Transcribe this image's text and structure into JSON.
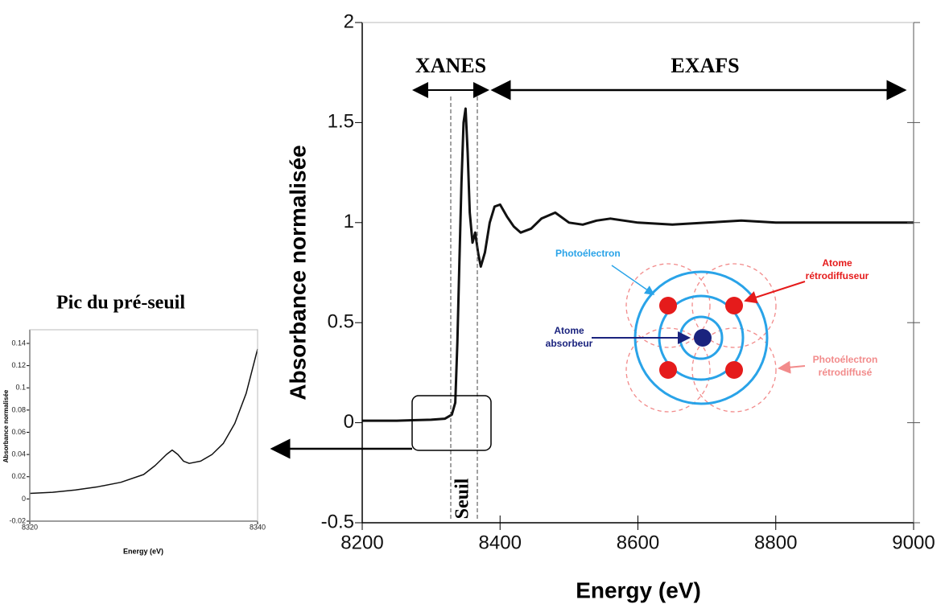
{
  "chart_data": [
    {
      "type": "line",
      "x_label": "Energy (eV)",
      "y_label": "Absorbance normalisée",
      "x": [
        8200,
        8250,
        8300,
        8320,
        8330,
        8335,
        8338,
        8341,
        8344,
        8347,
        8350,
        8353,
        8356,
        8360,
        8364,
        8368,
        8372,
        8378,
        8385,
        8392,
        8400,
        8410,
        8420,
        8430,
        8445,
        8460,
        8480,
        8500,
        8520,
        8540,
        8560,
        8600,
        8650,
        8700,
        8750,
        8800,
        8850,
        8900,
        9000
      ],
      "values": [
        0.01,
        0.01,
        0.015,
        0.02,
        0.04,
        0.1,
        0.4,
        0.8,
        1.2,
        1.5,
        1.57,
        1.35,
        1.05,
        0.9,
        0.95,
        0.85,
        0.78,
        0.85,
        1.0,
        1.08,
        1.09,
        1.03,
        0.98,
        0.95,
        0.97,
        1.02,
        1.05,
        1.0,
        0.99,
        1.01,
        1.02,
        1.0,
        0.99,
        1.0,
        1.01,
        1.0,
        1.0,
        1.0,
        1.0
      ],
      "color": "#111111",
      "xlim": [
        8200,
        9000
      ],
      "xticks": [
        8200,
        8400,
        8600,
        8800,
        9000
      ],
      "ylim": [
        -0.5,
        2
      ],
      "yticks": [
        -0.5,
        0,
        0.5,
        1,
        1.5,
        2
      ],
      "annotations": [
        "XANES",
        "EXAFS",
        "Seuil"
      ]
    },
    {
      "type": "line",
      "title": "Pic du pré-seuil",
      "x_label": "Energy (eV)",
      "y_label": "Absorbance normalisée",
      "x": [
        8320,
        8322,
        8324,
        8326,
        8328,
        8330,
        8331,
        8332,
        8332.5,
        8333,
        8333.5,
        8334,
        8335,
        8336,
        8337,
        8338,
        8339,
        8340
      ],
      "values": [
        0.005,
        0.006,
        0.008,
        0.011,
        0.015,
        0.022,
        0.03,
        0.04,
        0.044,
        0.04,
        0.034,
        0.032,
        0.034,
        0.04,
        0.05,
        0.068,
        0.095,
        0.135
      ],
      "color": "#111111",
      "xlim": [
        8320,
        8340
      ],
      "xticks": [
        8320,
        8340
      ],
      "ylim": [
        -0.02,
        0.14
      ],
      "yticks": [
        -0.02,
        0,
        0.02,
        0.04,
        0.06,
        0.08,
        0.1,
        0.12,
        0.14
      ]
    }
  ],
  "diagram": {
    "photoelectron": "Photoélectron",
    "backscatterer": [
      "Atome",
      "rétrodiffuseur"
    ],
    "absorber": [
      "Atome",
      "absorbeur"
    ],
    "backscattered": [
      "Photoélectron",
      "rétrodiffusé"
    ]
  }
}
